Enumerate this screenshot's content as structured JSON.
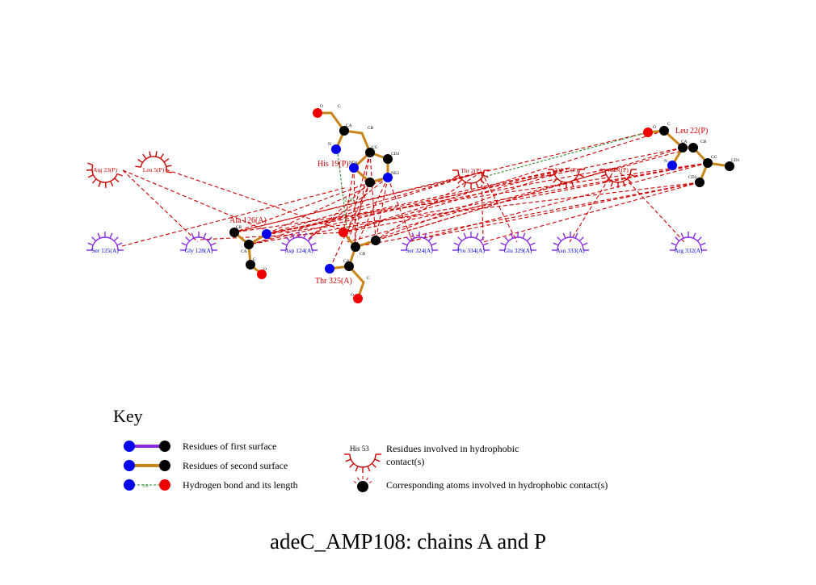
{
  "title": "adeC_AMP108: chains A and P",
  "residues": {
    "his19": "His 19(P)",
    "ala126": "Ala 126(A)",
    "thr325": "Thr 325(A)",
    "leu22": "Leu 22(P)"
  },
  "hydrophobic_residues": {
    "arg23": "Arg 23(P)",
    "leu5": "Leu 5(P)",
    "thr2": "Thr 2(P)",
    "val35": "Val 35(P)",
    "ala1": "Ala 1(P)",
    "ser125": "Ser 125(A)",
    "gly128": "Gly 128(A)",
    "asp124": "Asp 124(A)",
    "ser324": "Ser 324(A)",
    "pro334": "Pro 334(A)",
    "glu329": "Glu 329(A)",
    "asn333": "Asn 333(A)",
    "arg332": "Arg 332(A)"
  },
  "atoms": {
    "his_o": "O",
    "his_c": "C",
    "his_ca": "CA",
    "his_n": "N",
    "his_cb": "CB",
    "his_cg": "CG",
    "his_cd2": "CD2",
    "his_nd1": "ND1",
    "his_ne2": "NE2",
    "ala_cb": "CB",
    "ala_ca": "CA",
    "ala_c": "C",
    "ala_o": "O",
    "thr_ca": "CA",
    "thr_cb": "CB",
    "thr_c": "C",
    "thr_o": "O",
    "leu_o": "O",
    "leu_c": "C",
    "leu_ca": "CA",
    "leu_n": "N",
    "leu_cb": "CB",
    "leu_cg": "CG",
    "leu_cd1": "CD1",
    "leu_cd2": "CD2"
  },
  "hbond": {
    "length": "2.78"
  },
  "key": {
    "title": "Key",
    "first_surface": "Residues of first surface",
    "second_surface": "Residues of second surface",
    "hbond": "Hydrogen bond and its length",
    "hbond_sample_length": "3.0",
    "hydro_example": "His 53",
    "hydro_residues_line1": "Residues involved in hydrophobic",
    "hydro_residues_line2": "contact(s)",
    "hydro_atoms": "Corresponding atoms involved in hydrophobic contact(s)"
  },
  "colors": {
    "chain_p_residue": "#cc0000",
    "chain_a_residue": "#0000cc",
    "first_surface_bond": "#8a2be2",
    "second_surface_bond": "#d98c1a",
    "hbond": "#2e8b2e",
    "hydrophobic_line": "#cc0000",
    "nitrogen": "#0000ee",
    "oxygen": "#ee0000",
    "carbon": "#000000"
  }
}
